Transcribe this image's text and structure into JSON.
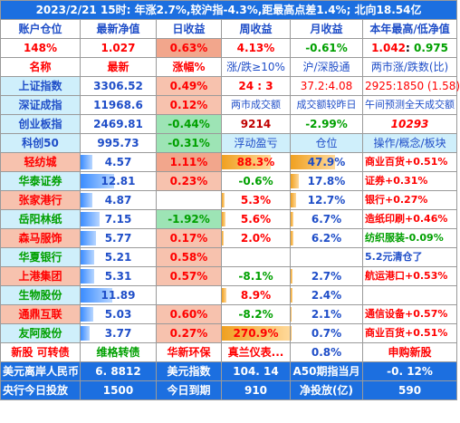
{
  "title": "2023/2/21  15时: 年涨2.7%,较沪指-4.3%,距最高点差1.4%; 北向18.54亿",
  "summary_headers": [
    "账户仓位",
    "最新净值",
    "日收益",
    "周收益",
    "月收益",
    "本年最高/低净值"
  ],
  "summary_values": {
    "position": "148%",
    "nav": "1.027",
    "day": "0.63%",
    "week": "4.13%",
    "month": "-0.61%",
    "year_hi": "1.042",
    "year_sep": ": ",
    "year_lo": "0.975"
  },
  "index_headers": [
    "名称",
    "最新",
    "涨幅%",
    "涨/跌≥10%",
    "沪/深股通",
    "两市涨/跌数(比)"
  ],
  "indices": [
    {
      "name": "上证指数",
      "last": "3306.52",
      "pct": "0.49%",
      "c4": "24 : 3",
      "c5": "37.2:4.08",
      "c6": "2925:1850 (1.58)"
    },
    {
      "name": "深证成指",
      "last": "11968.6",
      "pct": "0.12%",
      "c4": "两市成交额",
      "c5": "成交额较昨日",
      "c6": "午间预测全天成交额"
    },
    {
      "name": "创业板指",
      "last": "2469.81",
      "pct": "-0.44%",
      "c4": "9214",
      "c5": "-2.99%",
      "c6": "10293"
    },
    {
      "name": "科创50",
      "last": "995.73",
      "pct": "-0.31%",
      "c4": "浮动盈亏",
      "c5": "仓位",
      "c6": "操作/概念/板块"
    }
  ],
  "holdings": [
    {
      "name": "轻纺城",
      "price": "4.57",
      "pct": "1.11%",
      "pnl": "88.3%",
      "weight": "47.9%",
      "note": "商业百货+0.51%",
      "price_bar": 0.16,
      "pnl_bar": 0.72,
      "weight_bar": 0.62
    },
    {
      "name": "华泰证券",
      "price": "12.81",
      "pct": "0.23%",
      "pnl": "-0.6%",
      "weight": "17.8%",
      "note": "证券+0.31%",
      "price_bar": 0.45,
      "pnl_bar": 0,
      "weight_bar": 0.12
    },
    {
      "name": "张家港行",
      "price": "4.87",
      "pct": "",
      "pnl": "5.3%",
      "weight": "12.7%",
      "note": "银行+0.27%",
      "price_bar": 0.16,
      "pnl_bar": 0.04,
      "weight_bar": 0.08
    },
    {
      "name": "岳阳林纸",
      "price": "7.15",
      "pct": "-1.92%",
      "pnl": "5.6%",
      "weight": "6.7%",
      "note": "造纸印刷+0.46%",
      "price_bar": 0.25,
      "pnl_bar": 0.05,
      "weight_bar": 0.04
    },
    {
      "name": "森马服饰",
      "price": "5.77",
      "pct": "0.17%",
      "pnl": "2.0%",
      "weight": "6.2%",
      "note": "纺织服装-0.09%",
      "price_bar": 0.2,
      "pnl_bar": 0.02,
      "weight_bar": 0.04
    },
    {
      "name": "华夏银行",
      "price": "5.21",
      "pct": "0.58%",
      "pnl": "",
      "weight": "",
      "note": "5.2元清仓了",
      "price_bar": 0.18,
      "pnl_bar": 0,
      "weight_bar": 0
    },
    {
      "name": "上港集团",
      "price": "5.31",
      "pct": "0.57%",
      "pnl": "-8.1%",
      "weight": "2.7%",
      "note": "航运港口+0.53%",
      "price_bar": 0.18,
      "pnl_bar": 0,
      "weight_bar": 0.02
    },
    {
      "name": "生物股份",
      "price": "11.89",
      "pct": "",
      "pnl": "8.9%",
      "weight": "2.4%",
      "note": "",
      "price_bar": 0.42,
      "pnl_bar": 0.07,
      "weight_bar": 0.02
    },
    {
      "name": "通鼎互联",
      "price": "5.03",
      "pct": "0.60%",
      "pnl": "-8.2%",
      "weight": "2.1%",
      "note": "通信设备+0.57%",
      "price_bar": 0.17,
      "pnl_bar": 0,
      "weight_bar": 0.01
    },
    {
      "name": "友阿股份",
      "price": "3.77",
      "pct": "0.27%",
      "pnl": "270.9%",
      "weight": "0.7%",
      "note": "商业百货+0.51%",
      "price_bar": 0.12,
      "pnl_bar": 1.0,
      "weight_bar": 0.01
    }
  ],
  "last_row": {
    "c1": "新股 可转债",
    "c2": "维格转债",
    "c3": "华新环保",
    "c4": "真兰仪表...",
    "c5": "0.8%",
    "c6": "申购新股"
  },
  "footer1": {
    "a": "美元离岸人民币",
    "b": "6. 8812",
    "c": "美元指数",
    "d": "104. 14",
    "e": "A50期指当月",
    "f": "-0. 12%"
  },
  "footer2": {
    "a": "央行今日投放",
    "b": "1500",
    "c": "今日到期",
    "d": "910",
    "e": "净投放(亿)",
    "f": "590"
  }
}
